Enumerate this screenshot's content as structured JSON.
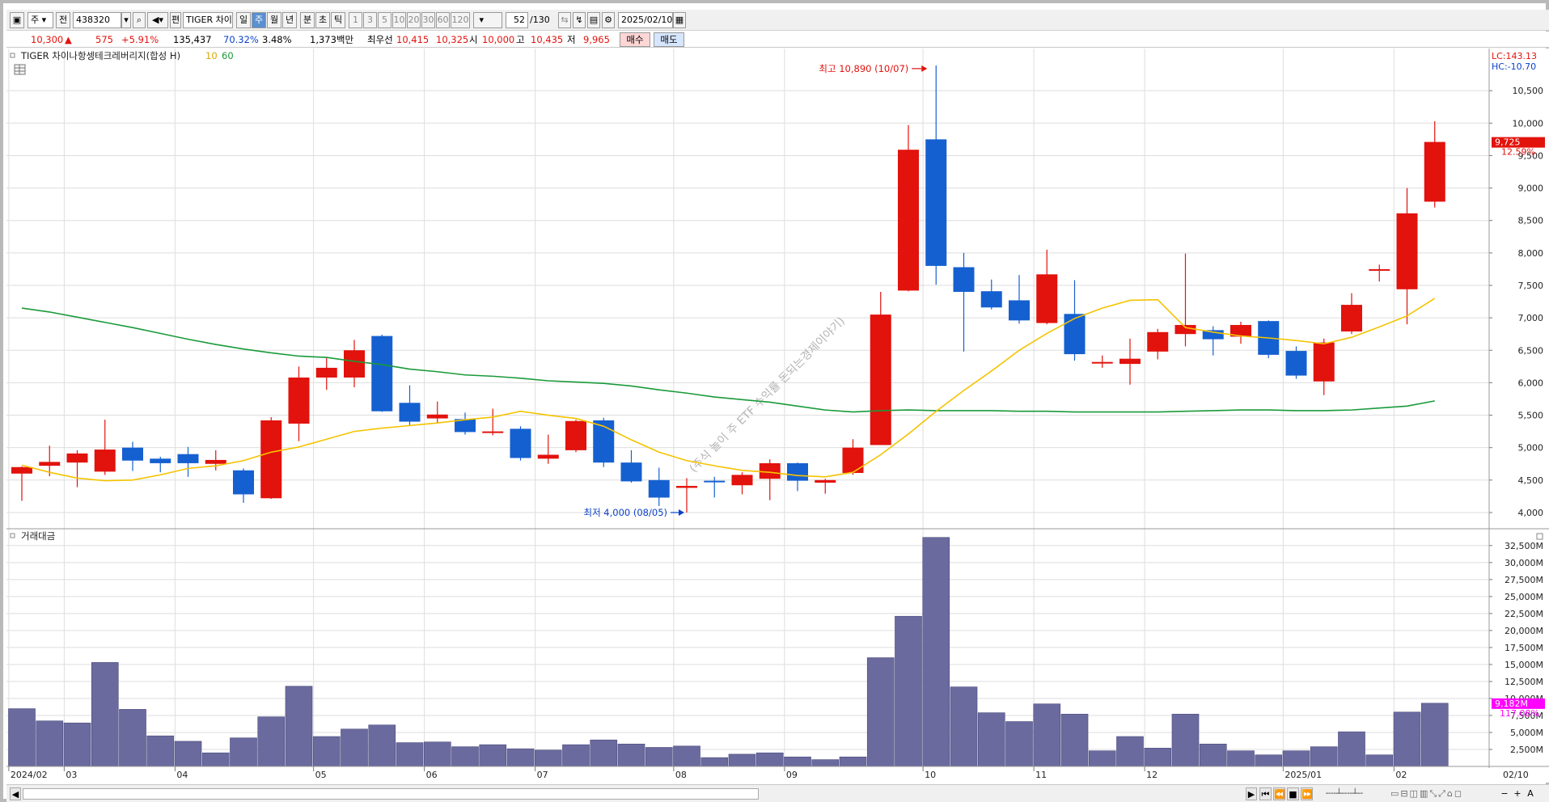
{
  "toolbar": {
    "period_select": "주",
    "prefix": "전",
    "code": "438320",
    "name": "TIGER 차이",
    "name_prefix": "편",
    "periods": [
      "일",
      "주",
      "월",
      "년"
    ],
    "selected_period": "주",
    "intraday": [
      "분",
      "초",
      "틱"
    ],
    "intervals": [
      "1",
      "3",
      "5",
      "10",
      "20",
      "30",
      "60",
      "120"
    ],
    "count": "52",
    "total": "/130",
    "date": "2025/02/10"
  },
  "quote": {
    "price": "10,300",
    "arrow": "▲",
    "change": "575",
    "change_pct": "+5.91%",
    "volume": "135,437",
    "vol_ratio": "70.32%",
    "turnover": "3.48%",
    "amount": "1,373백만",
    "best_label": "최우선",
    "best_ask": "10,415",
    "best_bid": "10,325",
    "open_label": "시",
    "open": "10,000",
    "high_label": "고",
    "high": "10,435",
    "low_label": "저",
    "low": "9,965",
    "buy_button": "매수",
    "sell_button": "매도"
  },
  "colors": {
    "up": "#e2120c",
    "down": "#1560d0",
    "ma10": "#f5c300",
    "ma60": "#1a9a3a",
    "volume_bar": "#6a6a9e",
    "grid": "#dedede"
  },
  "chart_data": [
    {
      "type": "candlestick",
      "title": "TIGER 차이나항셍테크레버리지(합성 H)",
      "ma_labels": [
        "10",
        "60"
      ],
      "corner_labels": {
        "lc": "LC:143.13",
        "hc": "HC:-10.70"
      },
      "current_price_label": "9,725",
      "current_pct_label": "12.59%",
      "annotations": [
        {
          "text": "최고 10,890 (10/07)",
          "value": 10890
        },
        {
          "text": "최저 4,000 (08/05)",
          "value": 4000
        }
      ],
      "ylim": [
        3800,
        11100
      ],
      "yticks": [
        4000,
        4500,
        5000,
        5500,
        6000,
        6500,
        7000,
        7500,
        8000,
        8500,
        9000,
        9500,
        10000,
        10500
      ],
      "yticklabels": [
        "4,000",
        "4,500",
        "5,000",
        "5,500",
        "6,000",
        "6,500",
        "7,000",
        "7,500",
        "8,000",
        "8,500",
        "9,000",
        "9,500",
        "10,000",
        "10,500"
      ],
      "x_labels": [
        {
          "index": 0,
          "label": "2024/02"
        },
        {
          "index": 2,
          "label": "03"
        },
        {
          "index": 6,
          "label": "04"
        },
        {
          "index": 11,
          "label": "05"
        },
        {
          "index": 15,
          "label": "06"
        },
        {
          "index": 19,
          "label": "07"
        },
        {
          "index": 24,
          "label": "08"
        },
        {
          "index": 28,
          "label": "09"
        },
        {
          "index": 33,
          "label": "10"
        },
        {
          "index": 37,
          "label": "11"
        },
        {
          "index": 41,
          "label": "12"
        },
        {
          "index": 46,
          "label": "2025/01"
        },
        {
          "index": 50,
          "label": "02"
        }
      ],
      "x_end_label": "02/10",
      "ohlc": [
        [
          4600,
          4700,
          4180,
          4710
        ],
        [
          4720,
          4780,
          4560,
          5030
        ],
        [
          4770,
          4910,
          4390,
          4960
        ],
        [
          4630,
          4970,
          4580,
          5430
        ],
        [
          5000,
          4800,
          4640,
          5090
        ],
        [
          4830,
          4760,
          4620,
          4860
        ],
        [
          4900,
          4760,
          4550,
          5010
        ],
        [
          4750,
          4810,
          4650,
          4960
        ],
        [
          4650,
          4280,
          4150,
          4680
        ],
        [
          4220,
          5420,
          4210,
          5470
        ],
        [
          5370,
          6080,
          5100,
          6250
        ],
        [
          6080,
          6230,
          5890,
          6390
        ],
        [
          6080,
          6500,
          5930,
          6660
        ],
        [
          6720,
          5560,
          5550,
          6740
        ],
        [
          5690,
          5400,
          5340,
          5960
        ],
        [
          5450,
          5510,
          5370,
          5710
        ],
        [
          5440,
          5240,
          5200,
          5540
        ],
        [
          5230,
          5250,
          5190,
          5600
        ],
        [
          5290,
          4840,
          4800,
          5330
        ],
        [
          4830,
          4890,
          4750,
          5200
        ],
        [
          4960,
          5410,
          4930,
          5430
        ],
        [
          5420,
          4770,
          4700,
          5460
        ],
        [
          4770,
          4480,
          4460,
          4960
        ],
        [
          4500,
          4230,
          4100,
          4690
        ],
        [
          4380,
          4410,
          4000,
          4530
        ],
        [
          4490,
          4470,
          4230,
          4550
        ],
        [
          4420,
          4580,
          4280,
          4620
        ],
        [
          4520,
          4760,
          4190,
          4820
        ],
        [
          4760,
          4490,
          4330,
          4770
        ],
        [
          4460,
          4500,
          4290,
          4520
        ],
        [
          4610,
          5000,
          4580,
          5130
        ],
        [
          5040,
          7050,
          5040,
          7400
        ],
        [
          7420,
          9590,
          7410,
          9970
        ],
        [
          9750,
          7800,
          7510,
          10890
        ],
        [
          7780,
          7400,
          6480,
          8000
        ],
        [
          7410,
          7160,
          7130,
          7590
        ],
        [
          7270,
          6960,
          6910,
          7660
        ],
        [
          6920,
          7670,
          6900,
          8050
        ],
        [
          7060,
          6440,
          6340,
          7580
        ],
        [
          6320,
          6320,
          6230,
          6420
        ],
        [
          6290,
          6370,
          5970,
          6680
        ],
        [
          6480,
          6780,
          6360,
          6830
        ],
        [
          6750,
          6890,
          6560,
          7990
        ],
        [
          6810,
          6670,
          6420,
          6870
        ],
        [
          6710,
          6890,
          6600,
          6940
        ],
        [
          6950,
          6430,
          6380,
          6960
        ],
        [
          6490,
          6110,
          6060,
          6560
        ],
        [
          6020,
          6620,
          5810,
          6680
        ],
        [
          6790,
          7200,
          6750,
          7380
        ],
        [
          7740,
          7750,
          7560,
          7820
        ],
        [
          7440,
          8610,
          6900,
          9000
        ],
        [
          8790,
          9710,
          8700,
          10030
        ]
      ],
      "ma10": [
        4730,
        4620,
        4530,
        4490,
        4500,
        4580,
        4680,
        4720,
        4800,
        4930,
        5010,
        5130,
        5250,
        5300,
        5340,
        5380,
        5430,
        5470,
        5560,
        5500,
        5450,
        5330,
        5120,
        4930,
        4800,
        4720,
        4650,
        4620,
        4570,
        4550,
        4620,
        4890,
        5210,
        5560,
        5880,
        6180,
        6500,
        6760,
        6990,
        7150,
        7270,
        7280,
        6850,
        6780,
        6720,
        6690,
        6650,
        6600,
        6700,
        6860,
        7030,
        7300
      ],
      "ma60": [
        7150,
        7090,
        7010,
        6930,
        6850,
        6760,
        6670,
        6590,
        6520,
        6460,
        6410,
        6390,
        6330,
        6280,
        6210,
        6170,
        6120,
        6100,
        6070,
        6030,
        6010,
        5990,
        5950,
        5890,
        5840,
        5780,
        5740,
        5700,
        5640,
        5580,
        5550,
        5570,
        5580,
        5570,
        5570,
        5570,
        5560,
        5560,
        5550,
        5550,
        5550,
        5550,
        5560,
        5570,
        5580,
        5580,
        5570,
        5570,
        5580,
        5610,
        5640,
        5720
      ]
    },
    {
      "type": "bar",
      "title": "거래대금",
      "ylim": [
        0,
        34500
      ],
      "yticks": [
        2500,
        5000,
        7500,
        10000,
        12500,
        15000,
        17500,
        20000,
        22500,
        25000,
        27500,
        30000,
        32500
      ],
      "yticklabels": [
        "2,500M",
        "5,000M",
        "7,500M",
        "10,000M",
        "12,500M",
        "15,000M",
        "17,500M",
        "20,000M",
        "22,500M",
        "25,000M",
        "27,500M",
        "30,000M",
        "32,500M"
      ],
      "current_label": "9,182M",
      "current_pct_label": "117.08%",
      "values": [
        8500,
        6700,
        6400,
        15300,
        8400,
        4500,
        3700,
        2000,
        4200,
        7300,
        11800,
        4400,
        5500,
        6100,
        3500,
        3600,
        2900,
        3200,
        2600,
        2400,
        3200,
        3900,
        3300,
        2800,
        3000,
        1300,
        1800,
        2000,
        1400,
        1000,
        1400,
        16000,
        22100,
        33700,
        11700,
        7900,
        6600,
        9200,
        7700,
        2300,
        4400,
        2700,
        7700,
        3300,
        2300,
        1700,
        2300,
        2900,
        5100,
        1700,
        8000,
        9300
      ]
    }
  ],
  "watermark": "(주식 놀이 주 ETF 수익률 돈되는경제이야기)",
  "scrollbar": {
    "left_arrow": "◀",
    "right_arrow": "▶",
    "controls": [
      "⏮",
      "⏪",
      "■",
      "⏩"
    ],
    "zoom": [
      "−",
      "+",
      "A"
    ]
  }
}
